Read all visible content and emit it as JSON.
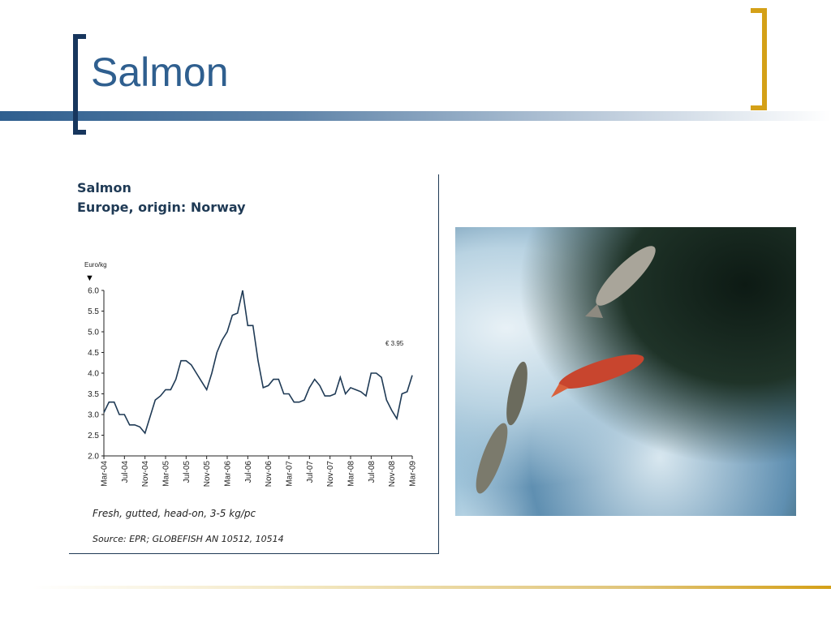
{
  "slide": {
    "title": "Salmon"
  },
  "chart_data": {
    "type": "line",
    "title": "Salmon",
    "subtitle": "Europe, origin: Norway",
    "ylabel": "Euro/kg",
    "ylim": [
      2.0,
      6.0
    ],
    "yticks": [
      "6.0",
      "5.5",
      "5.0",
      "4.5",
      "4.0",
      "3.5",
      "3.0",
      "2.5",
      "2.0"
    ],
    "xticks": [
      "Mar-04",
      "Jul-04",
      "Nov-04",
      "Mar-05",
      "Jul-05",
      "Nov-05",
      "Mar-06",
      "Jul-06",
      "Nov-06",
      "Mar-07",
      "Jul-07",
      "Nov-07",
      "Mar-08",
      "Jul-08",
      "Nov-08",
      "Mar-09"
    ],
    "annotation": "€ 3.95",
    "footnote": "Fresh, gutted, head-on, 3-5 kg/pc",
    "source": "Source: EPR; GLOBEFISH AN 10512, 10514",
    "series": [
      {
        "values": [
          3.05,
          3.3,
          3.3,
          3.0,
          3.0,
          2.75,
          2.75,
          2.7,
          2.55,
          2.95,
          3.35,
          3.45,
          3.6,
          3.6,
          3.85,
          4.3,
          4.3,
          4.2,
          4.0,
          3.8,
          3.6,
          4.0,
          4.5,
          4.8,
          5.0,
          5.4,
          5.45,
          6.0,
          5.15,
          5.15,
          4.3,
          3.65,
          3.7,
          3.85,
          3.85,
          3.5,
          3.5,
          3.3,
          3.3,
          3.35,
          3.65,
          3.85,
          3.7,
          3.45,
          3.45,
          3.5,
          3.9,
          3.5,
          3.65,
          3.6,
          3.55,
          3.45,
          4.0,
          4.0,
          3.9,
          3.35,
          3.1,
          2.9,
          3.5,
          3.55,
          3.95
        ]
      }
    ],
    "color": "#1f3a55"
  },
  "photo": {
    "icon": "salmon-leaping-photo"
  }
}
